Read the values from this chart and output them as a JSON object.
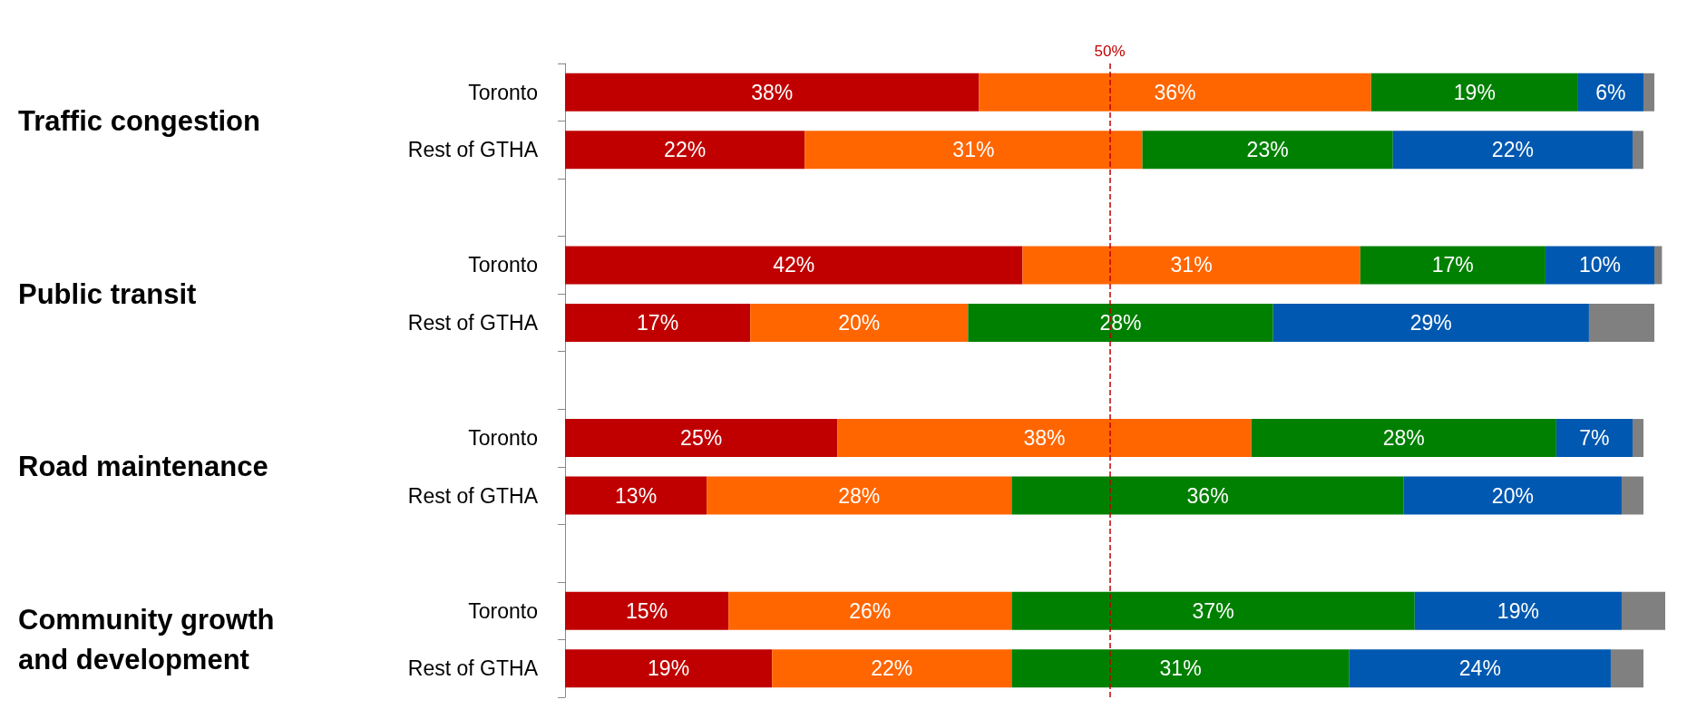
{
  "chart_data": {
    "type": "bar",
    "orientation": "horizontal",
    "stacked": true,
    "categories": [
      "Toronto",
      "Rest of GTHA",
      null,
      "Toronto",
      "Rest of GTHA",
      null,
      "Toronto",
      "Rest of GTHA",
      null,
      "Toronto",
      "Rest of GTHA"
    ],
    "series": [
      {
        "color": "#c00000",
        "values": [
          38,
          22,
          null,
          42,
          17,
          null,
          25,
          13,
          null,
          15,
          19
        ],
        "value_labels": [
          "38%",
          "22%",
          null,
          "42%",
          "17%",
          null,
          "25%",
          "13%",
          null,
          "15%",
          "19%"
        ]
      },
      {
        "color": "#ff6600",
        "values": [
          36,
          31,
          null,
          31,
          20,
          null,
          38,
          28,
          null,
          26,
          22
        ],
        "value_labels": [
          "36%",
          "31%",
          null,
          "31%",
          "20%",
          null,
          "38%",
          "28%",
          null,
          "26%",
          "22%"
        ]
      },
      {
        "color": "#008000",
        "values": [
          19,
          23,
          null,
          17,
          28,
          null,
          28,
          36,
          null,
          37,
          31
        ],
        "value_labels": [
          "19%",
          "23%",
          null,
          "17%",
          "28%",
          null,
          "28%",
          "36%",
          null,
          "37%",
          "31%"
        ]
      },
      {
        "color": "#0058b0",
        "values": [
          6,
          22,
          null,
          10,
          29,
          null,
          7,
          20,
          null,
          19,
          24
        ],
        "value_labels": [
          "6%",
          "22%",
          null,
          "10%",
          "29%",
          null,
          "7%",
          "20%",
          null,
          "19%",
          "24%"
        ]
      },
      {
        "color": "#808080",
        "values": [
          1,
          1,
          null,
          0.7,
          6,
          null,
          1,
          2,
          null,
          4,
          3
        ],
        "value_labels": [
          null,
          null,
          null,
          null,
          null,
          null,
          null,
          null,
          null,
          null,
          null
        ]
      }
    ],
    "xlim": [
      0,
      101
    ],
    "tick_labels": "y",
    "annotations": [
      "Traffic congestion",
      "Public transit",
      "Road maintenance",
      "Community growth\nand development"
    ],
    "ref_lines": [
      {
        "axis": "x",
        "value": 50,
        "label": "50%",
        "color": "#c00000",
        "line_style": "dashed"
      }
    ]
  }
}
